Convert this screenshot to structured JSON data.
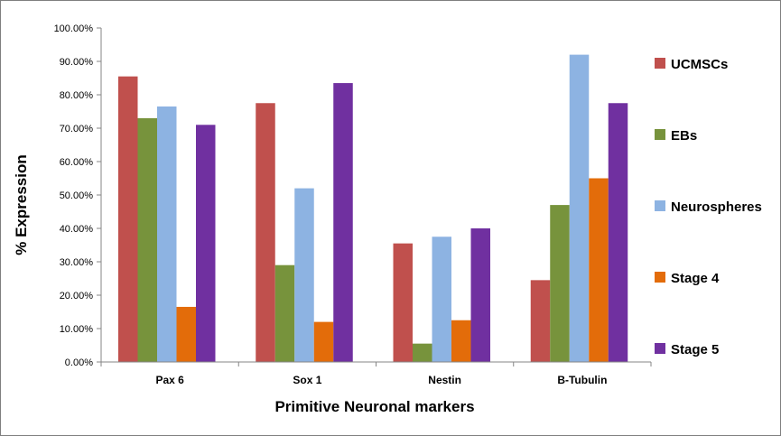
{
  "chart_data": {
    "type": "bar",
    "categories": [
      "Pax 6",
      "Sox 1",
      "Nestin",
      "B-Tubulin"
    ],
    "series": [
      {
        "name": "UCMSCs",
        "color": "#c0504d",
        "values": [
          85.5,
          77.5,
          35.5,
          24.5
        ]
      },
      {
        "name": "EBs",
        "color": "#77933c",
        "values": [
          73.0,
          29.0,
          5.5,
          47.0
        ]
      },
      {
        "name": "Neurospheres",
        "color": "#8db3e2",
        "values": [
          76.5,
          52.0,
          37.5,
          92.0
        ]
      },
      {
        "name": "Stage 4",
        "color": "#e36c0a",
        "values": [
          16.5,
          12.0,
          12.5,
          55.0
        ]
      },
      {
        "name": "Stage 5",
        "color": "#7030a0",
        "values": [
          71.0,
          83.5,
          40.0,
          77.5
        ]
      }
    ],
    "xlabel": "Primitive Neuronal markers",
    "ylabel": "% Expression",
    "ylim": [
      0,
      100
    ],
    "yticks": [
      0,
      10,
      20,
      30,
      40,
      50,
      60,
      70,
      80,
      90,
      100
    ],
    "ytick_labels": [
      "0.00%",
      "10.00%",
      "20.00%",
      "30.00%",
      "40.00%",
      "50.00%",
      "60.00%",
      "70.00%",
      "80.00%",
      "90.00%",
      "100.00%"
    ],
    "grid": false,
    "legend_position": "right"
  }
}
